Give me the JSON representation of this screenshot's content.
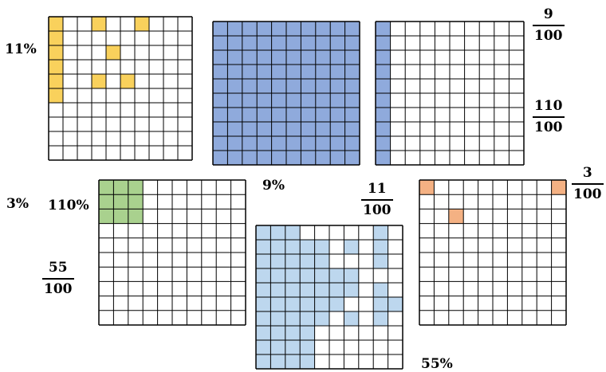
{
  "colors": {
    "yellow": "#f9d15c",
    "blue": "#8faadc",
    "green": "#a9d18e",
    "lightblue": "#bdd7ee",
    "orange": "#f4b183",
    "line": "#000000"
  },
  "labels": {
    "pct_11": "11%",
    "pct_9": "9%",
    "pct_3": "3%",
    "pct_110": "110%",
    "pct_55": "55%"
  },
  "fractions": {
    "f9": {
      "num": "9",
      "den": "100"
    },
    "f110": {
      "num": "110",
      "den": "100"
    },
    "f3": {
      "num": "3",
      "den": "100"
    },
    "f11": {
      "num": "11",
      "den": "100"
    },
    "f55": {
      "num": "55",
      "den": "100"
    }
  },
  "grids": [
    {
      "name": "grid-yellow-11",
      "color": "yellow",
      "shaded": 11,
      "cells": [
        [
          0,
          0
        ],
        [
          0,
          1
        ],
        [
          0,
          2
        ],
        [
          0,
          3
        ],
        [
          0,
          4
        ],
        [
          0,
          5
        ],
        [
          3,
          0
        ],
        [
          6,
          0
        ],
        [
          4,
          2
        ],
        [
          3,
          4
        ],
        [
          5,
          4
        ]
      ]
    },
    {
      "name": "grid-blue-full",
      "color": "blue",
      "shaded": 100,
      "cells": "all"
    },
    {
      "name": "grid-blue-column",
      "color": "blue",
      "shaded": 10,
      "cells": [
        [
          0,
          0
        ],
        [
          0,
          1
        ],
        [
          0,
          2
        ],
        [
          0,
          3
        ],
        [
          0,
          4
        ],
        [
          0,
          5
        ],
        [
          0,
          6
        ],
        [
          0,
          7
        ],
        [
          0,
          8
        ],
        [
          0,
          9
        ]
      ]
    },
    {
      "name": "grid-green-9",
      "color": "green",
      "shaded": 9,
      "cells": [
        [
          0,
          0
        ],
        [
          1,
          0
        ],
        [
          2,
          0
        ],
        [
          0,
          1
        ],
        [
          1,
          1
        ],
        [
          2,
          1
        ],
        [
          0,
          2
        ],
        [
          1,
          2
        ],
        [
          2,
          2
        ]
      ]
    },
    {
      "name": "grid-lightblue-55",
      "color": "lightblue",
      "shaded": 55,
      "cells": "lightblue-pattern"
    },
    {
      "name": "grid-orange-3",
      "color": "orange",
      "shaded": 3,
      "cells": [
        [
          0,
          0
        ],
        [
          9,
          0
        ],
        [
          2,
          2
        ]
      ]
    }
  ]
}
